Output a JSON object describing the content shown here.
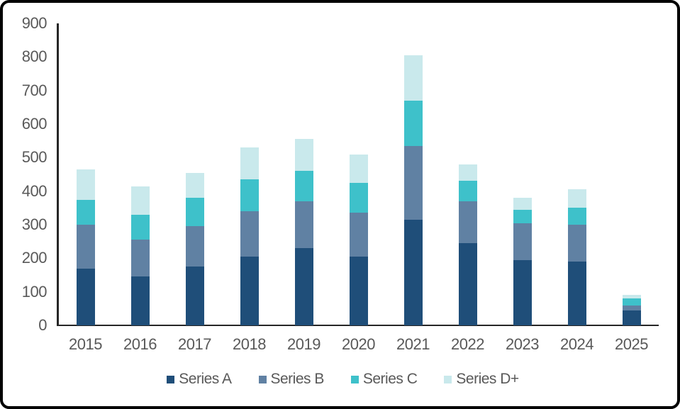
{
  "chart_data": {
    "type": "bar",
    "stacked": true,
    "title": "",
    "xlabel": "",
    "ylabel": "",
    "categories": [
      "2015",
      "2016",
      "2017",
      "2018",
      "2019",
      "2020",
      "2021",
      "2022",
      "2023",
      "2024",
      "2025"
    ],
    "series": [
      {
        "name": "Series A",
        "color": "#1F4E79",
        "values": [
          170,
          145,
          175,
          205,
          230,
          205,
          315,
          245,
          195,
          190,
          45
        ]
      },
      {
        "name": "Series B",
        "color": "#6081A3",
        "values": [
          130,
          110,
          120,
          135,
          140,
          130,
          220,
          125,
          110,
          110,
          15
        ]
      },
      {
        "name": "Series C",
        "color": "#3EC1CA",
        "values": [
          75,
          75,
          85,
          95,
          90,
          90,
          135,
          60,
          40,
          50,
          20
        ]
      },
      {
        "name": "Series D+",
        "color": "#C9E9EC",
        "values": [
          90,
          85,
          75,
          95,
          95,
          85,
          135,
          50,
          35,
          55,
          10
        ]
      }
    ],
    "ylim": [
      0,
      900
    ],
    "y_ticks": [
      0,
      100,
      200,
      300,
      400,
      500,
      600,
      700,
      800,
      900
    ],
    "grid": false,
    "legend_position": "bottom"
  },
  "colors": {
    "tick_label": "#595959",
    "legend_label": "#595959",
    "axis_line": "#262626",
    "frame_border": "#000000",
    "background": "#FFFFFF"
  }
}
